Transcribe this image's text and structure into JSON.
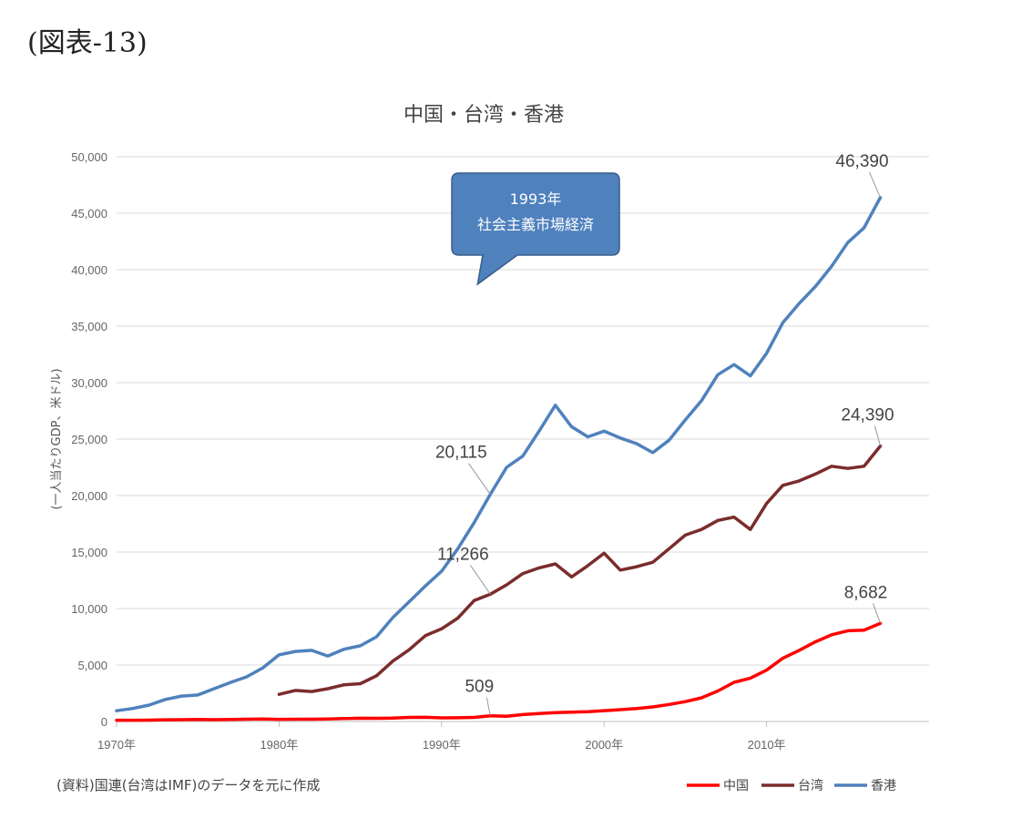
{
  "figure_label": "(図表-13)",
  "source_note": "(資料)国連(台湾はIMF)のデータを元に作成",
  "chart_data": {
    "type": "line",
    "title": "中国・台湾・香港",
    "ylabel": "(一人当たりGDP、米ドル)",
    "xlabel": "",
    "xlim": [
      1970,
      2017
    ],
    "ylim": [
      0,
      50000
    ],
    "y_ticks": [
      0,
      5000,
      10000,
      15000,
      20000,
      25000,
      30000,
      35000,
      40000,
      45000,
      50000
    ],
    "y_tick_labels": [
      "0",
      "5,000",
      "10,000",
      "15,000",
      "20,000",
      "25,000",
      "30,000",
      "35,000",
      "40,000",
      "45,000",
      "50,000"
    ],
    "x_ticks": [
      1970,
      1980,
      1990,
      2000,
      2010
    ],
    "x_tick_labels": [
      "1970年",
      "1980年",
      "1990年",
      "2000年",
      "2010年"
    ],
    "grid": true,
    "legend_position": "bottom-right",
    "callout": {
      "year": 1993,
      "line1": "1993年",
      "line2": "社会主義市場経済"
    },
    "series": [
      {
        "name": "中国",
        "color": "#ff0000",
        "x": [
          1970,
          1971,
          1972,
          1973,
          1974,
          1975,
          1976,
          1977,
          1978,
          1979,
          1980,
          1981,
          1982,
          1983,
          1984,
          1985,
          1986,
          1987,
          1988,
          1989,
          1990,
          1991,
          1992,
          1993,
          1994,
          1995,
          1996,
          1997,
          1998,
          1999,
          2000,
          2001,
          2002,
          2003,
          2004,
          2005,
          2006,
          2007,
          2008,
          2009,
          2010,
          2011,
          2012,
          2013,
          2014,
          2015,
          2016,
          2017
        ],
        "values": [
          110,
          115,
          125,
          150,
          160,
          175,
          165,
          185,
          200,
          225,
          195,
          200,
          205,
          225,
          255,
          290,
          280,
          300,
          365,
          375,
          320,
          330,
          365,
          509,
          470,
          610,
          700,
          780,
          820,
          870,
          960,
          1050,
          1150,
          1290,
          1510,
          1760,
          2100,
          2700,
          3470,
          3840,
          4550,
          5600,
          6300,
          7050,
          7680,
          8030,
          8080,
          8682
        ]
      },
      {
        "name": "台湾",
        "color": "#7b2c2c",
        "x": [
          1980,
          1981,
          1982,
          1983,
          1984,
          1985,
          1986,
          1987,
          1988,
          1989,
          1990,
          1991,
          1992,
          1993,
          1994,
          1995,
          1996,
          1997,
          1998,
          1999,
          2000,
          2001,
          2002,
          2003,
          2004,
          2005,
          2006,
          2007,
          2008,
          2009,
          2010,
          2011,
          2012,
          2013,
          2014,
          2015,
          2016,
          2017
        ],
        "values": [
          2400,
          2750,
          2650,
          2900,
          3250,
          3350,
          4050,
          5350,
          6350,
          7600,
          8200,
          9150,
          10700,
          11266,
          12100,
          13100,
          13600,
          13950,
          12800,
          13800,
          14900,
          13400,
          13700,
          14100,
          15300,
          16500,
          17000,
          17800,
          18100,
          17000,
          19300,
          20900,
          21300,
          21900,
          22600,
          22400,
          22600,
          24390
        ]
      },
      {
        "name": "香港",
        "color": "#4f81bd",
        "x": [
          1970,
          1971,
          1972,
          1973,
          1974,
          1975,
          1976,
          1977,
          1978,
          1979,
          1980,
          1981,
          1982,
          1983,
          1984,
          1985,
          1986,
          1987,
          1988,
          1989,
          1990,
          1991,
          1992,
          1993,
          1994,
          1995,
          1996,
          1997,
          1998,
          1999,
          2000,
          2001,
          2002,
          2003,
          2004,
          2005,
          2006,
          2007,
          2008,
          2009,
          2010,
          2011,
          2012,
          2013,
          2014,
          2015,
          2016,
          2017
        ],
        "values": [
          950,
          1150,
          1450,
          1950,
          2250,
          2350,
          2900,
          3450,
          3950,
          4750,
          5900,
          6200,
          6300,
          5800,
          6400,
          6700,
          7500,
          9200,
          10600,
          12000,
          13300,
          15300,
          17600,
          20115,
          22500,
          23500,
          25700,
          28000,
          26100,
          25200,
          25700,
          25100,
          24600,
          23800,
          24900,
          26700,
          28400,
          30700,
          31600,
          30600,
          32600,
          35300,
          37000,
          38500,
          40300,
          42400,
          43700,
          46390
        ]
      }
    ],
    "data_labels": [
      {
        "series": "香港",
        "year": 1993,
        "text": "20,115"
      },
      {
        "series": "香港",
        "year": 2017,
        "text": "46,390"
      },
      {
        "series": "台湾",
        "year": 1993,
        "text": "11,266"
      },
      {
        "series": "台湾",
        "year": 2017,
        "text": "24,390"
      },
      {
        "series": "中国",
        "year": 1993,
        "text": "509"
      },
      {
        "series": "中国",
        "year": 2017,
        "text": "8,682"
      }
    ]
  }
}
